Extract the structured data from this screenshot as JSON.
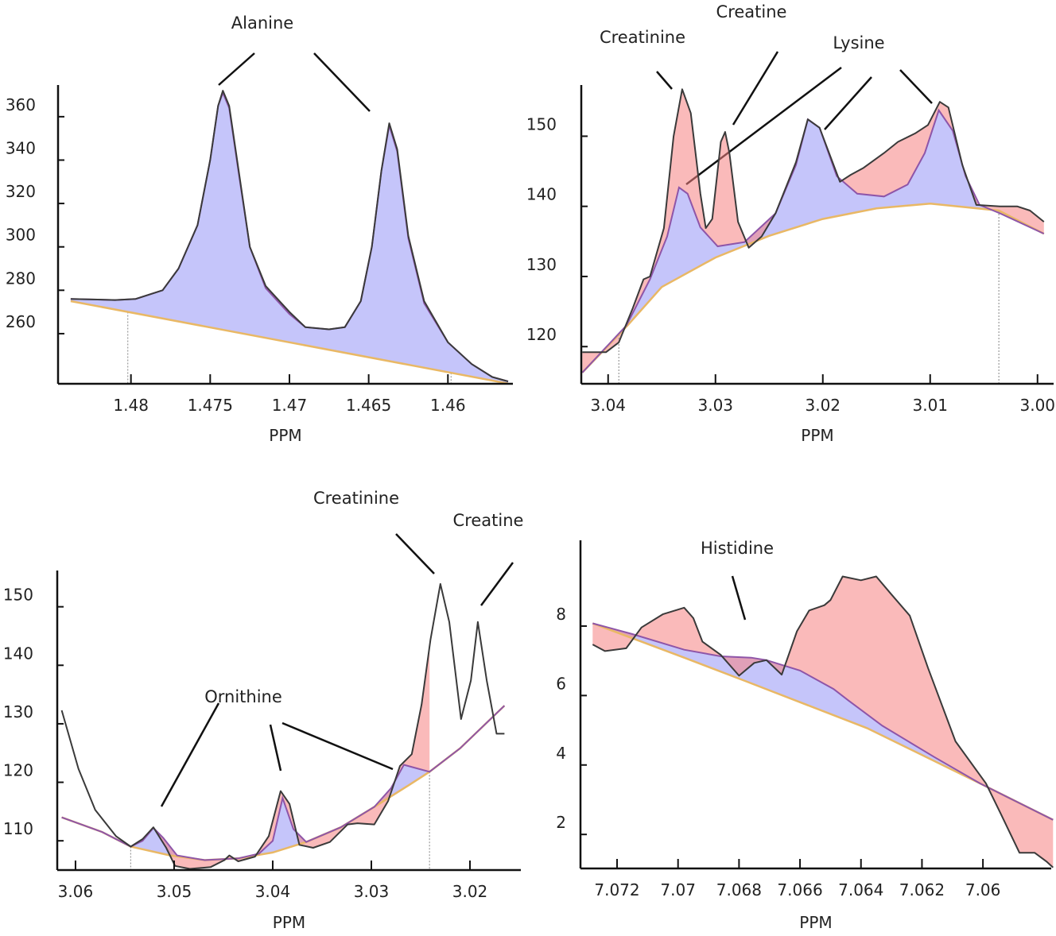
{
  "colors": {
    "observed": "#3a3a3a",
    "fit": "#8e55a8",
    "baseline": "#e9b865",
    "fit_fill": "rgba(150,150,245,0.55)",
    "residual_fill": "rgba(245,130,130,0.55)",
    "marker": "#9a9a9a"
  },
  "chart_data": [
    {
      "type": "line",
      "panel": "top-left",
      "xlabel": "PPM",
      "xlim": [
        1.4846,
        1.4559
      ],
      "ylim": [
        236.9,
        374.6
      ],
      "xticks": [
        {
          "value": 1.48,
          "label": "1.48"
        },
        {
          "value": 1.475,
          "label": "1.475"
        },
        {
          "value": 1.47,
          "label": "1.47"
        },
        {
          "value": 1.465,
          "label": "1.465"
        },
        {
          "value": 1.46,
          "label": "1.46"
        }
      ],
      "yticks": [
        {
          "value": 260,
          "label": "260"
        },
        {
          "value": 280,
          "label": "280"
        },
        {
          "value": 300,
          "label": "300"
        },
        {
          "value": 320,
          "label": "320"
        },
        {
          "value": 340,
          "label": "340"
        },
        {
          "value": 360,
          "label": "360"
        }
      ],
      "markers": [
        1.4802,
        1.4598
      ],
      "fill_range": [
        1.4838,
        1.4562
      ],
      "annotations": [
        {
          "text": "Alanine"
        }
      ],
      "observed": [
        [
          1.4838,
          276
        ],
        [
          1.481,
          275.5
        ],
        [
          1.4797,
          276
        ],
        [
          1.478,
          280
        ],
        [
          1.477,
          290
        ],
        [
          1.4758,
          310
        ],
        [
          1.475,
          340
        ],
        [
          1.4745,
          365
        ],
        [
          1.4742,
          372
        ],
        [
          1.4738,
          365
        ],
        [
          1.4732,
          335
        ],
        [
          1.4725,
          300
        ],
        [
          1.4715,
          282
        ],
        [
          1.47,
          270
        ],
        [
          1.469,
          263
        ],
        [
          1.4675,
          262
        ],
        [
          1.4665,
          263
        ],
        [
          1.4655,
          275
        ],
        [
          1.4648,
          300
        ],
        [
          1.4642,
          335
        ],
        [
          1.4637,
          357
        ],
        [
          1.4632,
          345
        ],
        [
          1.4625,
          305
        ],
        [
          1.4615,
          275
        ],
        [
          1.46,
          256
        ],
        [
          1.4585,
          246
        ],
        [
          1.4572,
          240
        ],
        [
          1.4562,
          238
        ]
      ],
      "fit": [
        [
          1.4838,
          276
        ],
        [
          1.481,
          275.5
        ],
        [
          1.4797,
          276
        ],
        [
          1.478,
          280
        ],
        [
          1.477,
          290
        ],
        [
          1.4758,
          310
        ],
        [
          1.475,
          340
        ],
        [
          1.4745,
          365
        ],
        [
          1.4742,
          371
        ],
        [
          1.4738,
          364
        ],
        [
          1.4732,
          334
        ],
        [
          1.4725,
          300
        ],
        [
          1.4715,
          281
        ],
        [
          1.47,
          269
        ],
        [
          1.469,
          263
        ],
        [
          1.4675,
          262
        ],
        [
          1.4665,
          263
        ],
        [
          1.4655,
          275
        ],
        [
          1.4648,
          300
        ],
        [
          1.4642,
          335
        ],
        [
          1.4637,
          356
        ],
        [
          1.4632,
          344
        ],
        [
          1.4625,
          304
        ],
        [
          1.4615,
          274
        ],
        [
          1.46,
          256
        ],
        [
          1.4585,
          246
        ],
        [
          1.4572,
          240
        ],
        [
          1.4562,
          238
        ]
      ],
      "baseline": [
        [
          1.4838,
          275
        ],
        [
          1.4562,
          237
        ]
      ]
    },
    {
      "type": "line",
      "panel": "top-right",
      "xlabel": "PPM",
      "xlim": [
        3.0425,
        2.9985
      ],
      "ylim": [
        114.7,
        157.3
      ],
      "xticks": [
        {
          "value": 3.04,
          "label": "3.04"
        },
        {
          "value": 3.03,
          "label": "3.03"
        },
        {
          "value": 3.02,
          "label": "3.02"
        },
        {
          "value": 3.01,
          "label": "3.01"
        },
        {
          "value": 3.0,
          "label": "3.00"
        }
      ],
      "yticks": [
        {
          "value": 120,
          "label": "120"
        },
        {
          "value": 130,
          "label": "130"
        },
        {
          "value": 140,
          "label": "140"
        },
        {
          "value": 150,
          "label": "150"
        }
      ],
      "markers": [
        3.039,
        3.0036
      ],
      "fill_range": [
        3.0424,
        2.9994
      ],
      "annotations": [
        {
          "text": "Creatinine"
        },
        {
          "text": "Creatine"
        },
        {
          "text": "Lysine"
        }
      ],
      "observed": [
        [
          3.0424,
          119.2
        ],
        [
          3.0402,
          119.2
        ],
        [
          3.039,
          120.6
        ],
        [
          3.0377,
          125.5
        ],
        [
          3.0367,
          129.6
        ],
        [
          3.0361,
          130
        ],
        [
          3.0348,
          136.9
        ],
        [
          3.0339,
          150
        ],
        [
          3.0331,
          156.7
        ],
        [
          3.0323,
          153.3
        ],
        [
          3.0314,
          141.8
        ],
        [
          3.0309,
          136.9
        ],
        [
          3.0303,
          138.2
        ],
        [
          3.0295,
          149.2
        ],
        [
          3.0291,
          150.6
        ],
        [
          3.0287,
          147.6
        ],
        [
          3.0279,
          137.8
        ],
        [
          3.0269,
          134.1
        ],
        [
          3.0257,
          135.7
        ],
        [
          3.0244,
          139
        ],
        [
          3.0225,
          146.3
        ],
        [
          3.0214,
          152.4
        ],
        [
          3.0203,
          151.2
        ],
        [
          3.0184,
          143.5
        ],
        [
          3.0174,
          144.5
        ],
        [
          3.0162,
          145.5
        ],
        [
          3.0143,
          147.6
        ],
        [
          3.013,
          149.2
        ],
        [
          3.0114,
          150.4
        ],
        [
          3.0102,
          151.6
        ],
        [
          3.0091,
          154.9
        ],
        [
          3.0083,
          154.1
        ],
        [
          3.007,
          145.9
        ],
        [
          3.0057,
          140.2
        ],
        [
          3.0035,
          140
        ],
        [
          3.0019,
          140
        ],
        [
          3.0007,
          139.4
        ],
        [
          2.9994,
          137.8
        ]
      ],
      "fit": [
        [
          3.0424,
          116.3
        ],
        [
          3.0383,
          123
        ],
        [
          3.0361,
          129.6
        ],
        [
          3.0345,
          135.7
        ],
        [
          3.0334,
          142.7
        ],
        [
          3.0326,
          141.8
        ],
        [
          3.0314,
          137
        ],
        [
          3.0298,
          134.3
        ],
        [
          3.0273,
          134.9
        ],
        [
          3.0244,
          139
        ],
        [
          3.0225,
          145.9
        ],
        [
          3.0214,
          152.4
        ],
        [
          3.0203,
          151.2
        ],
        [
          3.0187,
          144.3
        ],
        [
          3.0168,
          141.8
        ],
        [
          3.0143,
          141.4
        ],
        [
          3.0121,
          143.1
        ],
        [
          3.0105,
          147.6
        ],
        [
          3.0092,
          153.7
        ],
        [
          3.0079,
          150.8
        ],
        [
          3.0067,
          144.3
        ],
        [
          3.0054,
          140.2
        ],
        [
          3.0035,
          139
        ],
        [
          2.9994,
          136.1
        ]
      ],
      "baseline": [
        [
          3.0424,
          116.3
        ],
        [
          3.0382,
          123
        ],
        [
          3.035,
          128.5
        ],
        [
          3.03,
          132.7
        ],
        [
          3.025,
          135.8
        ],
        [
          3.02,
          138.2
        ],
        [
          3.015,
          139.7
        ],
        [
          3.01,
          140.4
        ],
        [
          3.0036,
          139.4
        ],
        [
          2.9994,
          136.1
        ]
      ]
    },
    {
      "type": "line",
      "panel": "bottom-left",
      "xlabel": "PPM",
      "xlim": [
        3.06185,
        3.01484
      ],
      "ylim": [
        105,
        156.2
      ],
      "xticks": [
        {
          "value": 3.06,
          "label": "3.06"
        },
        {
          "value": 3.05,
          "label": "3.05"
        },
        {
          "value": 3.04,
          "label": "3.04"
        },
        {
          "value": 3.03,
          "label": "3.03"
        },
        {
          "value": 3.02,
          "label": "3.02"
        }
      ],
      "yticks": [
        {
          "value": 110,
          "label": "110"
        },
        {
          "value": 120,
          "label": "120"
        },
        {
          "value": 130,
          "label": "130"
        },
        {
          "value": 140,
          "label": "140"
        },
        {
          "value": 150,
          "label": "150"
        }
      ],
      "markers": [
        3.0544,
        3.0241
      ],
      "fill_range": [
        3.0544,
        3.0241
      ],
      "annotations": [
        {
          "text": "Creatinine"
        },
        {
          "text": "Creatine"
        },
        {
          "text": "Ornithine"
        }
      ],
      "observed": [
        [
          3.0614,
          132.3
        ],
        [
          3.0597,
          122.3
        ],
        [
          3.058,
          115.3
        ],
        [
          3.0559,
          110.8
        ],
        [
          3.0544,
          109
        ],
        [
          3.0532,
          110.3
        ],
        [
          3.0521,
          112.3
        ],
        [
          3.0508,
          108.8
        ],
        [
          3.0499,
          105.7
        ],
        [
          3.0484,
          105.2
        ],
        [
          3.0463,
          105.5
        ],
        [
          3.0449,
          106.7
        ],
        [
          3.0444,
          107.5
        ],
        [
          3.0435,
          106.5
        ],
        [
          3.0418,
          107.3
        ],
        [
          3.0404,
          110.8
        ],
        [
          3.0392,
          118.5
        ],
        [
          3.0383,
          116.3
        ],
        [
          3.0373,
          109.3
        ],
        [
          3.0359,
          108.8
        ],
        [
          3.0342,
          109.8
        ],
        [
          3.0324,
          112.8
        ],
        [
          3.0314,
          113
        ],
        [
          3.0297,
          112.8
        ],
        [
          3.0283,
          116.8
        ],
        [
          3.0271,
          122.8
        ],
        [
          3.0259,
          124.8
        ],
        [
          3.0249,
          133.3
        ],
        [
          3.024,
          144.4
        ],
        [
          3.023,
          153.9
        ],
        [
          3.0221,
          147.4
        ],
        [
          3.0209,
          130.8
        ],
        [
          3.0199,
          137.4
        ],
        [
          3.0192,
          147.4
        ],
        [
          3.0183,
          137.4
        ],
        [
          3.0173,
          128.3
        ],
        [
          3.0165,
          128.3
        ]
      ],
      "fit": [
        [
          3.0614,
          114
        ],
        [
          3.0573,
          111.5
        ],
        [
          3.0544,
          109
        ],
        [
          3.0532,
          110
        ],
        [
          3.0521,
          112.2
        ],
        [
          3.0511,
          110.5
        ],
        [
          3.0497,
          107.5
        ],
        [
          3.0469,
          106.7
        ],
        [
          3.0435,
          107
        ],
        [
          3.0414,
          107.8
        ],
        [
          3.04,
          110
        ],
        [
          3.039,
          117.3
        ],
        [
          3.0379,
          112
        ],
        [
          3.0366,
          109.8
        ],
        [
          3.0331,
          112.3
        ],
        [
          3.0297,
          115.8
        ],
        [
          3.028,
          119
        ],
        [
          3.0267,
          123
        ],
        [
          3.0252,
          122.3
        ],
        [
          3.0241,
          121.8
        ],
        [
          3.021,
          125.8
        ],
        [
          3.0165,
          133.1
        ]
      ],
      "baseline": [
        [
          3.0614,
          114
        ],
        [
          3.0573,
          111.5
        ],
        [
          3.0544,
          109
        ],
        [
          3.0504,
          107.5
        ],
        [
          3.0469,
          106.7
        ],
        [
          3.0435,
          107
        ],
        [
          3.04,
          108
        ],
        [
          3.0366,
          109.8
        ],
        [
          3.0331,
          112.3
        ],
        [
          3.0297,
          115.8
        ],
        [
          3.0262,
          119.5
        ],
        [
          3.0241,
          121.8
        ],
        [
          3.021,
          125.8
        ],
        [
          3.0165,
          133.1
        ]
      ]
    },
    {
      "type": "line",
      "panel": "bottom-right",
      "xlabel": "PPM",
      "xlim": [
        7.0732,
        7.05776
      ],
      "ylim": [
        1.02,
        10.47
      ],
      "xticks": [
        {
          "value": 7.072,
          "label": "7.072"
        },
        {
          "value": 7.07,
          "label": "7.07"
        },
        {
          "value": 7.068,
          "label": "7.068"
        },
        {
          "value": 7.066,
          "label": "7.066"
        },
        {
          "value": 7.064,
          "label": "7.064"
        },
        {
          "value": 7.062,
          "label": "7.062"
        },
        {
          "value": 7.06,
          "label": "7.06"
        }
      ],
      "yticks": [
        {
          "value": 2,
          "label": "2"
        },
        {
          "value": 4,
          "label": "4"
        },
        {
          "value": 6,
          "label": "6"
        },
        {
          "value": 8,
          "label": "8"
        }
      ],
      "markers": [],
      "fill_range": [
        7.0728,
        7.0577
      ],
      "annotations": [
        {
          "text": "Histidine"
        }
      ],
      "observed": [
        [
          7.0728,
          7.47
        ],
        [
          7.0724,
          7.28
        ],
        [
          7.0717,
          7.36
        ],
        [
          7.0712,
          7.96
        ],
        [
          7.0705,
          8.34
        ],
        [
          7.0698,
          8.53
        ],
        [
          7.0695,
          8.23
        ],
        [
          7.0692,
          7.55
        ],
        [
          7.0686,
          7.17
        ],
        [
          7.068,
          6.57
        ],
        [
          7.0675,
          6.94
        ],
        [
          7.0671,
          7.02
        ],
        [
          7.0666,
          6.6
        ],
        [
          7.0661,
          7.85
        ],
        [
          7.0657,
          8.45
        ],
        [
          7.0652,
          8.6
        ],
        [
          7.065,
          8.75
        ],
        [
          7.0646,
          9.43
        ],
        [
          7.064,
          9.32
        ],
        [
          7.0635,
          9.43
        ],
        [
          7.063,
          8.91
        ],
        [
          7.0624,
          8.3
        ],
        [
          7.0618,
          6.79
        ],
        [
          7.0609,
          4.68
        ],
        [
          7.0599,
          3.47
        ],
        [
          7.0594,
          2.57
        ],
        [
          7.0588,
          1.47
        ],
        [
          7.0583,
          1.47
        ],
        [
          7.0579,
          1.21
        ],
        [
          7.0577,
          1.05
        ]
      ],
      "fit": [
        [
          7.0728,
          8.08
        ],
        [
          7.0715,
          7.77
        ],
        [
          7.0698,
          7.32
        ],
        [
          7.0686,
          7.13
        ],
        [
          7.0676,
          7.09
        ],
        [
          7.0671,
          7.02
        ],
        [
          7.066,
          6.72
        ],
        [
          7.0649,
          6.19
        ],
        [
          7.0644,
          5.85
        ],
        [
          7.0633,
          5.13
        ],
        [
          7.0616,
          4.23
        ],
        [
          7.0601,
          3.47
        ],
        [
          7.0577,
          2.42
        ]
      ],
      "baseline": [
        [
          7.0728,
          8.08
        ],
        [
          7.0698,
          7.09
        ],
        [
          7.0678,
          6.42
        ],
        [
          7.0638,
          5.06
        ],
        [
          7.0601,
          3.47
        ],
        [
          7.0577,
          2.42
        ]
      ]
    }
  ]
}
